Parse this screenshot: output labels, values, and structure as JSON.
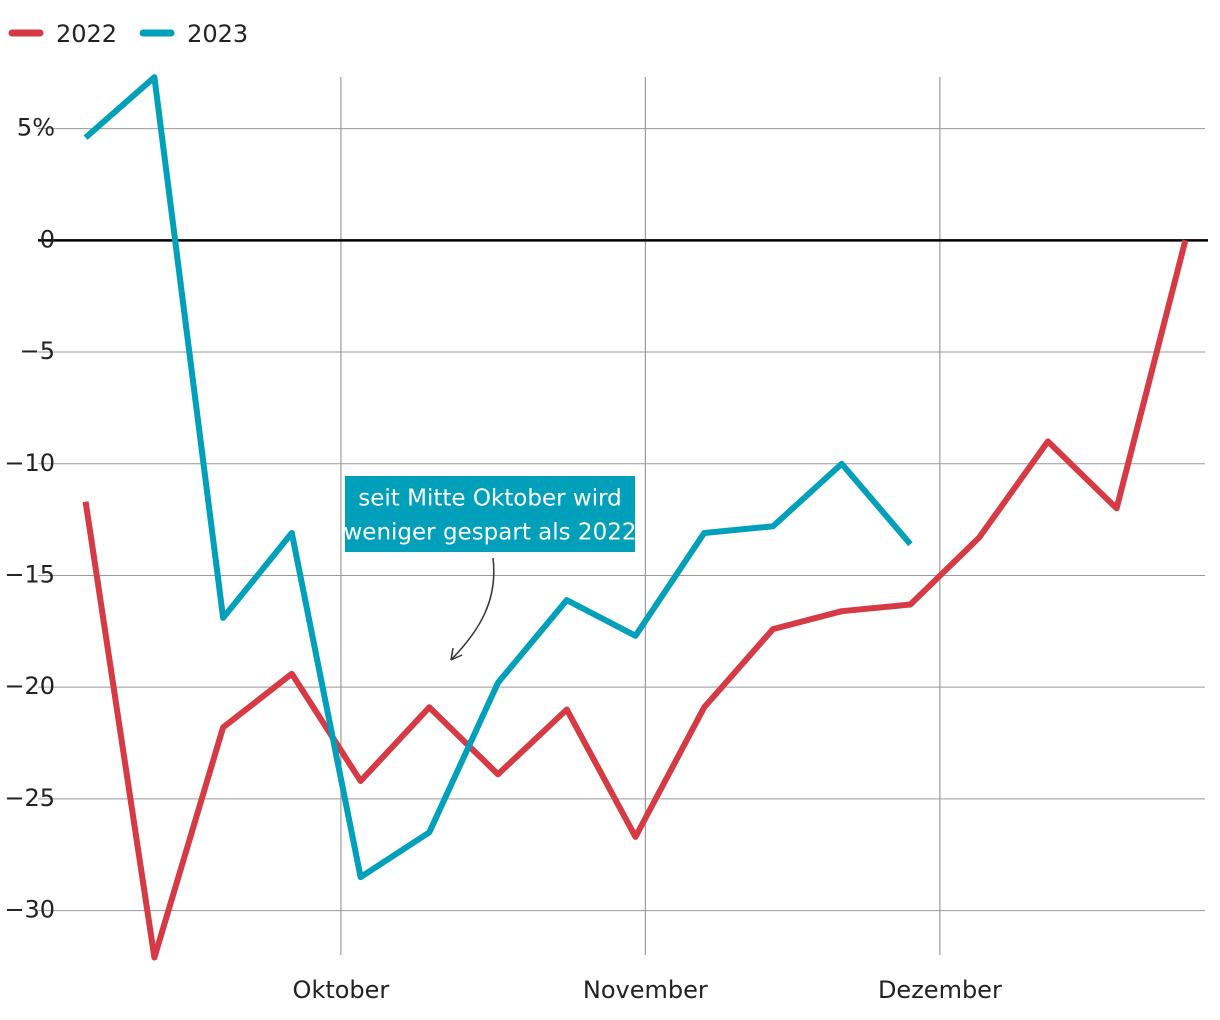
{
  "chart_data": {
    "type": "line",
    "x": [
      248,
      255,
      262,
      269,
      276,
      283,
      290,
      297,
      304,
      311,
      318,
      325,
      332,
      339,
      346,
      353,
      360
    ],
    "series": [
      {
        "name": "2022",
        "color": "#d63a44",
        "values": [
          -11.7,
          -32.1,
          -21.8,
          -19.4,
          -24.2,
          -20.9,
          -23.9,
          -21.0,
          -26.7,
          -20.9,
          -17.4,
          -16.6,
          -16.3,
          -13.3,
          -9.0,
          -12.0,
          0
        ]
      },
      {
        "name": "2023",
        "color": "#00a0bb",
        "values": [
          4.6,
          7.3,
          -16.9,
          -13.1,
          -28.5,
          -26.5,
          -19.8,
          -16.1,
          -17.7,
          -13.1,
          -12.8,
          -10.0,
          -13.6,
          null,
          null,
          null,
          null
        ]
      }
    ],
    "xlim": [
      246,
      362
    ],
    "xticks": [
      {
        "value": 274,
        "label": "Oktober"
      },
      {
        "value": 305,
        "label": "November"
      },
      {
        "value": 335,
        "label": "Dezember"
      }
    ],
    "ylim": [
      -32.3,
      7.4
    ],
    "yticks": [
      {
        "value": 5,
        "label": "5%"
      },
      0,
      {
        "value": -5,
        "label": "−5"
      },
      {
        "value": -10,
        "label": "−10"
      },
      {
        "value": -15,
        "label": "−15"
      },
      {
        "value": -20,
        "label": "−20"
      },
      {
        "value": -25,
        "label": "−25"
      },
      {
        "value": -30,
        "label": "−30"
      }
    ],
    "grid": true,
    "legend": "top-left",
    "annotation": {
      "lines": [
        "seit Mitte Oktober wird",
        "weniger gespart als 2022"
      ],
      "color": "#00a0bb"
    }
  }
}
